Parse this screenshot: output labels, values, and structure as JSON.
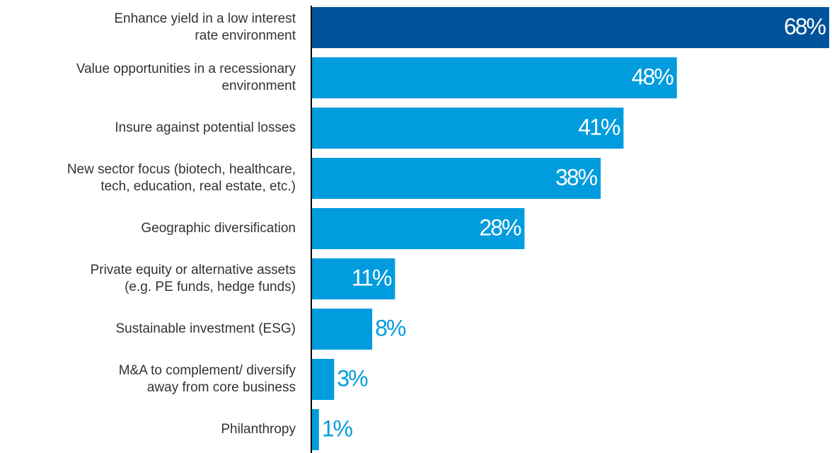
{
  "chart_data": {
    "type": "bar",
    "orientation": "horizontal",
    "categories": [
      [
        "Enhance yield in a low interest",
        "rate environment"
      ],
      [
        "Value opportunities in a recessionary",
        "environment"
      ],
      [
        "Insure against potential losses"
      ],
      [
        "New sector focus (biotech, healthcare,",
        "tech, education, real estate, etc.)"
      ],
      [
        "Geographic diversification"
      ],
      [
        "Private equity or alternative assets",
        "(e.g. PE funds, hedge funds)"
      ],
      [
        "Sustainable investment (ESG)"
      ],
      [
        "M&A to complement/ diversify",
        "away from core business"
      ],
      [
        "Philanthropy"
      ]
    ],
    "values": [
      68,
      48,
      41,
      38,
      28,
      11,
      8,
      3,
      1
    ],
    "value_labels": [
      "68%",
      "48%",
      "41%",
      "38%",
      "28%",
      "11%",
      "8%",
      "3%",
      "1%"
    ],
    "highlight_index": 0,
    "xlim": [
      0,
      68
    ],
    "title": "",
    "xlabel": "",
    "ylabel": "",
    "grid": false,
    "legend": "none",
    "colors": {
      "highlight": "#00529b",
      "bar": "#009cdd",
      "axis": "#000000",
      "label_inside": "#ffffff",
      "label_outside": "#009cdd"
    }
  }
}
